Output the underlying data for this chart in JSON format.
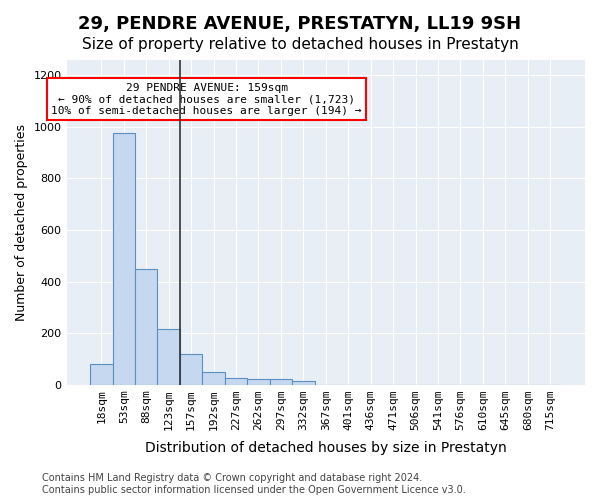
{
  "title": "29, PENDRE AVENUE, PRESTATYN, LL19 9SH",
  "subtitle": "Size of property relative to detached houses in Prestatyn",
  "xlabel": "Distribution of detached houses by size in Prestatyn",
  "ylabel": "Number of detached properties",
  "bin_labels": [
    "18sqm",
    "53sqm",
    "88sqm",
    "123sqm",
    "157sqm",
    "192sqm",
    "227sqm",
    "262sqm",
    "297sqm",
    "332sqm",
    "367sqm",
    "401sqm",
    "436sqm",
    "471sqm",
    "506sqm",
    "541sqm",
    "576sqm",
    "610sqm",
    "645sqm",
    "680sqm",
    "715sqm"
  ],
  "bar_heights": [
    80,
    975,
    450,
    215,
    120,
    48,
    25,
    22,
    20,
    12,
    0,
    0,
    0,
    0,
    0,
    0,
    0,
    0,
    0,
    0,
    0
  ],
  "bar_color": "#c5d8f0",
  "bar_edge_color": "#5a8fc2",
  "annotation_text": "29 PENDRE AVENUE: 159sqm\n← 90% of detached houses are smaller (1,723)\n10% of semi-detached houses are larger (194) →",
  "annotation_box_color": "white",
  "annotation_box_edge_color": "red",
  "ylim": [
    0,
    1260
  ],
  "yticks": [
    0,
    200,
    400,
    600,
    800,
    1000,
    1200
  ],
  "background_color": "#e8eef5",
  "grid_color": "white",
  "footer_text": "Contains HM Land Registry data © Crown copyright and database right 2024.\nContains public sector information licensed under the Open Government Licence v3.0.",
  "title_fontsize": 13,
  "subtitle_fontsize": 11,
  "xlabel_fontsize": 10,
  "ylabel_fontsize": 9,
  "tick_fontsize": 8,
  "annotation_fontsize": 8,
  "footer_fontsize": 7
}
